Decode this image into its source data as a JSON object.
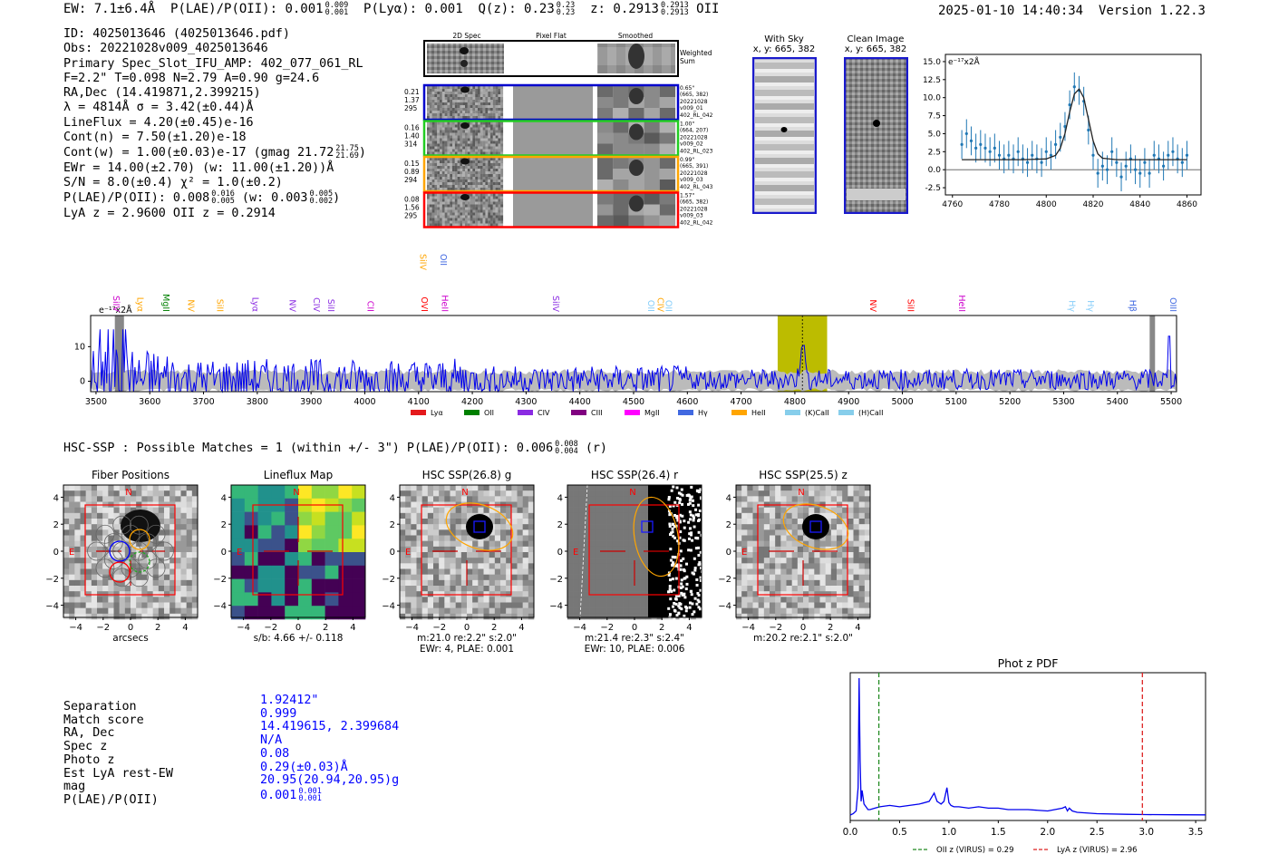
{
  "header": {
    "ew": "EW: 7.1±6.4Å",
    "plae_label": "P(LAE)/P(OII): 0.001",
    "plae_hi": "0.009",
    "plae_lo": "0.001",
    "plya": "P(Lyα): 0.001",
    "qz_label": "Q(z): 0.23",
    "qz_hi": "0.23",
    "qz_lo": "0.23",
    "z_label": "z: 0.2913",
    "z_hi": "0.2913",
    "z_lo": "0.2913",
    "z_line": "OII",
    "datetime": "2025-01-10 14:40:34",
    "version": "Version 1.22.3"
  },
  "info": {
    "id": "ID: 4025013646 (4025013646.pdf)",
    "obs": "Obs: 20221028v009_4025013646",
    "primary": "Primary Spec_Slot_IFU_AMP: 402_077_061_RL",
    "fiber": "F=2.2\"  T=0.098  N=2.79  A=0.90  g=24.6",
    "radec": "RA,Dec (14.419871,2.399215)",
    "lambda": "λ = 4814Å  σ = 3.42(±0.44)Å",
    "lineflux": "LineFlux = 4.20(±0.45)e-16",
    "contn": "Cont(n) = 7.50(±1.20)e-18",
    "contw": "Cont(w) = 1.00(±0.03)e-17 (gmag 21.72",
    "gmag_hi": "21.75",
    "gmag_lo": "21.69",
    "contw_close": ")",
    "ewr": "EWr = 14.00(±2.70) (w: 11.00(±1.20))Å",
    "sn": "S/N = 8.0(±0.4)  χ² = 1.0(±0.2)",
    "plae": "P(LAE)/P(OII): 0.008",
    "plae_hi": "0.016",
    "plae_lo": "0.005",
    "plae_w": "(w: 0.003",
    "plae_w_hi": "0.005",
    "plae_w_lo": "0.002",
    "plae_w_close": ")",
    "lyaz": "LyA z = 2.9600  OII z = 0.2914"
  },
  "cutouts": {
    "col_2d": "2D Spec",
    "col_flat": "Pixel Flat",
    "col_smooth": "Smoothed",
    "weighted": "Weighted",
    "sum": "Sum",
    "rows": [
      {
        "color": "#0000cc",
        "l1": "0.21",
        "l2": "1.37",
        "l3": "295",
        "r1": "0.65\"",
        "r2": "(665, 382)",
        "r3": "20221028",
        "r4": "v009_01",
        "r5": "402_RL_042"
      },
      {
        "color": "#22cc22",
        "l1": "0.16",
        "l2": "1.40",
        "l3": "314",
        "r1": "1.00\"",
        "r2": "(664, 207)",
        "r3": "20221028",
        "r4": "v009_02",
        "r5": "402_RL_023"
      },
      {
        "color": "#ffa500",
        "l1": "0.15",
        "l2": "0.89",
        "l3": "294",
        "r1": "0.99\"",
        "r2": "(665, 391)",
        "r3": "20221028",
        "r4": "v009_03",
        "r5": "402_RL_043"
      },
      {
        "color": "#ff0000",
        "l1": "0.08",
        "l2": "1.56",
        "l3": "295",
        "r1": "1.57\"",
        "r2": "(665, 382)",
        "r3": "20221028",
        "r4": "v009_03",
        "r5": "402_RL_042"
      }
    ]
  },
  "skypanels": {
    "withsky_title": "With Sky",
    "withsky_coords": "x, y: 665, 382",
    "clean_title": "Clean Image",
    "clean_coords": "x, y: 665, 382"
  },
  "zoom_chart": {
    "type": "scatter",
    "unit": "e⁻¹⁷x2Å",
    "xlim": [
      4757,
      4866
    ],
    "ylim": [
      -3.5,
      16
    ],
    "xticks": [
      4760,
      4780,
      4800,
      4820,
      4840,
      4860
    ],
    "yticks": [
      -2.5,
      0.0,
      2.5,
      5.0,
      7.5,
      10.0,
      12.5,
      15.0
    ],
    "x": [
      4764,
      4766,
      4768,
      4770,
      4772,
      4774,
      4776,
      4778,
      4780,
      4782,
      4784,
      4786,
      4788,
      4790,
      4792,
      4794,
      4796,
      4798,
      4800,
      4802,
      4804,
      4806,
      4808,
      4810,
      4812,
      4814,
      4816,
      4818,
      4820,
      4822,
      4824,
      4826,
      4828,
      4830,
      4832,
      4834,
      4836,
      4838,
      4840,
      4842,
      4844,
      4846,
      4848,
      4850,
      4852,
      4854,
      4856,
      4858,
      4860
    ],
    "y": [
      3.5,
      5.0,
      4.0,
      3.0,
      3.5,
      3.0,
      2.5,
      3.0,
      2.0,
      1.5,
      2.0,
      1.5,
      2.5,
      1.5,
      1.0,
      2.0,
      1.5,
      1.0,
      2.5,
      2.0,
      3.5,
      4.5,
      6.0,
      9.0,
      11.5,
      11.0,
      9.5,
      5.5,
      2.0,
      -0.5,
      0.5,
      0.0,
      2.5,
      1.0,
      -1.0,
      0.5,
      1.5,
      0.0,
      -0.5,
      1.0,
      -0.5,
      2.0,
      1.5,
      0.5,
      2.0,
      2.5,
      1.5,
      1.0,
      2.0
    ],
    "yerr": 2.0,
    "model_x": [
      4764,
      4790,
      4800,
      4804,
      4806,
      4808,
      4810,
      4812,
      4814,
      4816,
      4818,
      4820,
      4822,
      4824,
      4830,
      4860
    ],
    "model_y": [
      1.4,
      1.4,
      1.5,
      2.0,
      3.0,
      5.0,
      8.0,
      10.5,
      11.2,
      10.0,
      7.0,
      4.0,
      2.2,
      1.6,
      1.4,
      1.4
    ]
  },
  "main_chart": {
    "type": "line",
    "unit": "e⁻¹⁷x2Å",
    "xlim": [
      3490,
      5510
    ],
    "ylim": [
      -3,
      19
    ],
    "xticks": [
      3500,
      3600,
      3700,
      3800,
      3900,
      4000,
      4100,
      4200,
      4300,
      4400,
      4500,
      4600,
      4700,
      4800,
      4900,
      5000,
      5100,
      5200,
      5300,
      5400,
      5500
    ],
    "yticks": [
      0,
      10
    ],
    "highlight": [
      4768,
      4860
    ],
    "line_wave": 4814,
    "lines_top": [
      {
        "label": "SiIV",
        "wave": 4098,
        "color": "#ffa500"
      },
      {
        "label": "OII",
        "wave": 4136,
        "color": "#4169e1"
      }
    ],
    "lines": [
      {
        "label": "SiIV",
        "wave": 3527,
        "color": "#cc00cc"
      },
      {
        "label": "Lyα",
        "wave": 3572,
        "color": "#ffa500"
      },
      {
        "label": "MgII",
        "wave": 3620,
        "color": "#008000"
      },
      {
        "label": "NV",
        "wave": 3666,
        "color": "#ffa500"
      },
      {
        "label": "SiII",
        "wave": 3720,
        "color": "#ffa500"
      },
      {
        "label": "Lyα",
        "wave": 3786,
        "color": "#8a2be2"
      },
      {
        "label": "NV",
        "wave": 3855,
        "color": "#8a2be2"
      },
      {
        "label": "CIV",
        "wave": 3900,
        "color": "#8a2be2"
      },
      {
        "label": "SiII",
        "wave": 3927,
        "color": "#8a2be2"
      },
      {
        "label": "CII",
        "wave": 4000,
        "color": "#cc00cc"
      },
      {
        "label": "OVI",
        "wave": 4100,
        "color": "#ff0000"
      },
      {
        "label": "HeII",
        "wave": 4138,
        "color": "#cc00cc"
      },
      {
        "label": "SiIV",
        "wave": 4345,
        "color": "#8a2be2"
      },
      {
        "label": "OII",
        "wave": 4522,
        "color": "#87cefa"
      },
      {
        "label": "CIV",
        "wave": 4540,
        "color": "#ffa500"
      },
      {
        "label": "OII",
        "wave": 4555,
        "color": "#87cefa"
      },
      {
        "label": "NV",
        "wave": 4935,
        "color": "#ff0000"
      },
      {
        "label": "SiII",
        "wave": 5005,
        "color": "#ff0000"
      },
      {
        "label": "HeII",
        "wave": 5100,
        "color": "#cc00cc"
      },
      {
        "label": "Hγ",
        "wave": 5305,
        "color": "#87cefa"
      },
      {
        "label": "Hγ",
        "wave": 5340,
        "color": "#87cefa"
      },
      {
        "label": "Hβ",
        "wave": 5418,
        "color": "#4169e1"
      },
      {
        "label": "OIII",
        "wave": 5493,
        "color": "#4169e1"
      }
    ],
    "legend": [
      {
        "label": "Lyα",
        "color": "#e41a1c"
      },
      {
        "label": "OII",
        "color": "#008000"
      },
      {
        "label": "CIV",
        "color": "#8a2be2"
      },
      {
        "label": "CIII",
        "color": "#800080"
      },
      {
        "label": "MgII",
        "color": "#ff00ff"
      },
      {
        "label": "Hγ",
        "color": "#4169e1"
      },
      {
        "label": "HeII",
        "color": "#ffa500"
      },
      {
        "label": "(K)CaII",
        "color": "#87ceeb"
      },
      {
        "label": "(H)CaII",
        "color": "#87ceeb"
      }
    ]
  },
  "hsc": {
    "heading": "HSC-SSP : Possible Matches = 1 (within +/- 3\")  P(LAE)/P(OII): 0.006",
    "heading_hi": "0.008",
    "heading_lo": "0.004",
    "heading_band": "(r)",
    "panels": [
      {
        "title": "Fiber Positions",
        "xlabel": "arcsecs",
        "line2": ""
      },
      {
        "title": "Lineflux Map",
        "xlabel": "s/b: 4.66 +/- 0.118",
        "line2": ""
      },
      {
        "title": "HSC SSP(26.8) g",
        "xlabel": "m:21.0  re:2.2\"  s:2.0\"",
        "line2": "EWr: 4, PLAE: 0.001"
      },
      {
        "title": "HSC SSP(26.4) r",
        "xlabel": "m:21.4  re:2.3\"  s:2.4\"",
        "line2": "EWr: 10, PLAE: 0.006"
      },
      {
        "title": "HSC SSP(25.5) z",
        "xlabel": "m:20.2  re:2.1\"  s:2.0\"",
        "line2": ""
      }
    ],
    "ticks": [
      -4,
      -2,
      0,
      2,
      4
    ],
    "north": "N",
    "east": "E"
  },
  "match": {
    "labels": [
      "Separation",
      "Match score",
      "RA, Dec",
      "Spec z",
      "Photo z",
      "Est LyA rest-EW",
      "mag",
      "P(LAE)/P(OII)"
    ],
    "values": [
      "1.92412\"",
      "0.999",
      "14.419615, 2.399684",
      "N/A",
      "0.08",
      "0.29(±0.03)Å",
      "20.95(20.94,20.95)g",
      "0.001"
    ],
    "plae_hi": "0.001",
    "plae_lo": "0.001"
  },
  "photz_chart": {
    "type": "line",
    "title": "Phot z PDF",
    "xlim": [
      0,
      3.6
    ],
    "xticks": [
      0.0,
      0.5,
      1.0,
      1.5,
      2.0,
      2.5,
      3.0,
      3.5
    ],
    "oii_z": 0.29,
    "lya_z": 2.96,
    "legend_oii": "OII z (VIRUS) = 0.29",
    "legend_lya": "LyA z (VIRUS) = 2.96",
    "x": [
      0.0,
      0.03,
      0.06,
      0.08,
      0.09,
      0.1,
      0.11,
      0.12,
      0.14,
      0.16,
      0.18,
      0.2,
      0.25,
      0.3,
      0.4,
      0.5,
      0.6,
      0.7,
      0.8,
      0.85,
      0.88,
      0.9,
      0.92,
      0.95,
      0.98,
      1.0,
      1.02,
      1.05,
      1.1,
      1.2,
      1.3,
      1.4,
      1.5,
      1.6,
      1.8,
      2.0,
      2.15,
      2.18,
      2.2,
      2.22,
      2.25,
      2.3,
      2.5,
      2.8,
      3.0,
      3.3,
      3.6
    ],
    "y": [
      0.0,
      0.01,
      0.03,
      0.2,
      1.0,
      0.4,
      0.1,
      0.18,
      0.08,
      0.06,
      0.04,
      0.04,
      0.05,
      0.06,
      0.07,
      0.06,
      0.07,
      0.08,
      0.1,
      0.16,
      0.1,
      0.09,
      0.08,
      0.1,
      0.2,
      0.09,
      0.07,
      0.06,
      0.06,
      0.05,
      0.06,
      0.05,
      0.05,
      0.04,
      0.04,
      0.03,
      0.05,
      0.06,
      0.03,
      0.05,
      0.03,
      0.02,
      0.01,
      0.005,
      0.003,
      0.002,
      0.001
    ]
  }
}
